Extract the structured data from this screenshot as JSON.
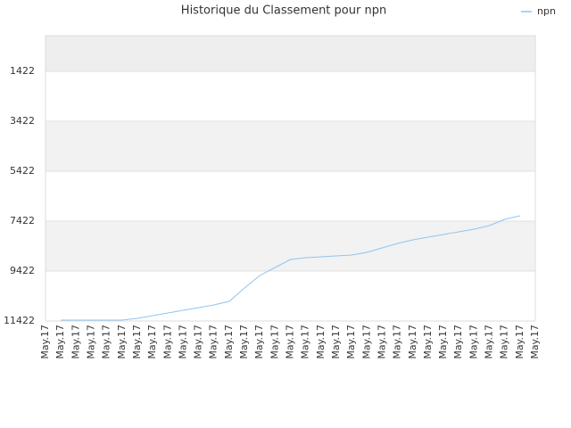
{
  "chart_data": {
    "type": "line",
    "title": "Historique du Classement pour npn",
    "categories": [
      "May.17",
      "May.17",
      "May.17",
      "May.17",
      "May.17",
      "May.17",
      "May.17",
      "May.17",
      "May.17",
      "May.17",
      "May.17",
      "May.17",
      "May.17",
      "May.17",
      "May.17",
      "May.17",
      "May.17",
      "May.17",
      "May.17",
      "May.17",
      "May.17",
      "May.17",
      "May.17",
      "May.17",
      "May.17",
      "May.17",
      "May.17",
      "May.17",
      "May.17",
      "May.17",
      "May.17",
      "May.17",
      "May.17"
    ],
    "series": [
      {
        "name": "npn",
        "color": "#90c4f0",
        "values": [
          null,
          11386,
          11386,
          11386,
          11386,
          11386,
          11315,
          11208,
          11101,
          10993,
          10886,
          10779,
          10636,
          10101,
          9600,
          9279,
          8958,
          8886,
          8851,
          8815,
          8779,
          8672,
          8494,
          8315,
          8172,
          8065,
          7958,
          7850,
          7743,
          7600,
          7350,
          7208,
          null
        ]
      }
    ],
    "ylim": [
      11422,
      -7
    ],
    "yticks": [
      1422,
      3422,
      5422,
      7422,
      9422,
      11422
    ],
    "grid": true,
    "legend": "top-right"
  }
}
